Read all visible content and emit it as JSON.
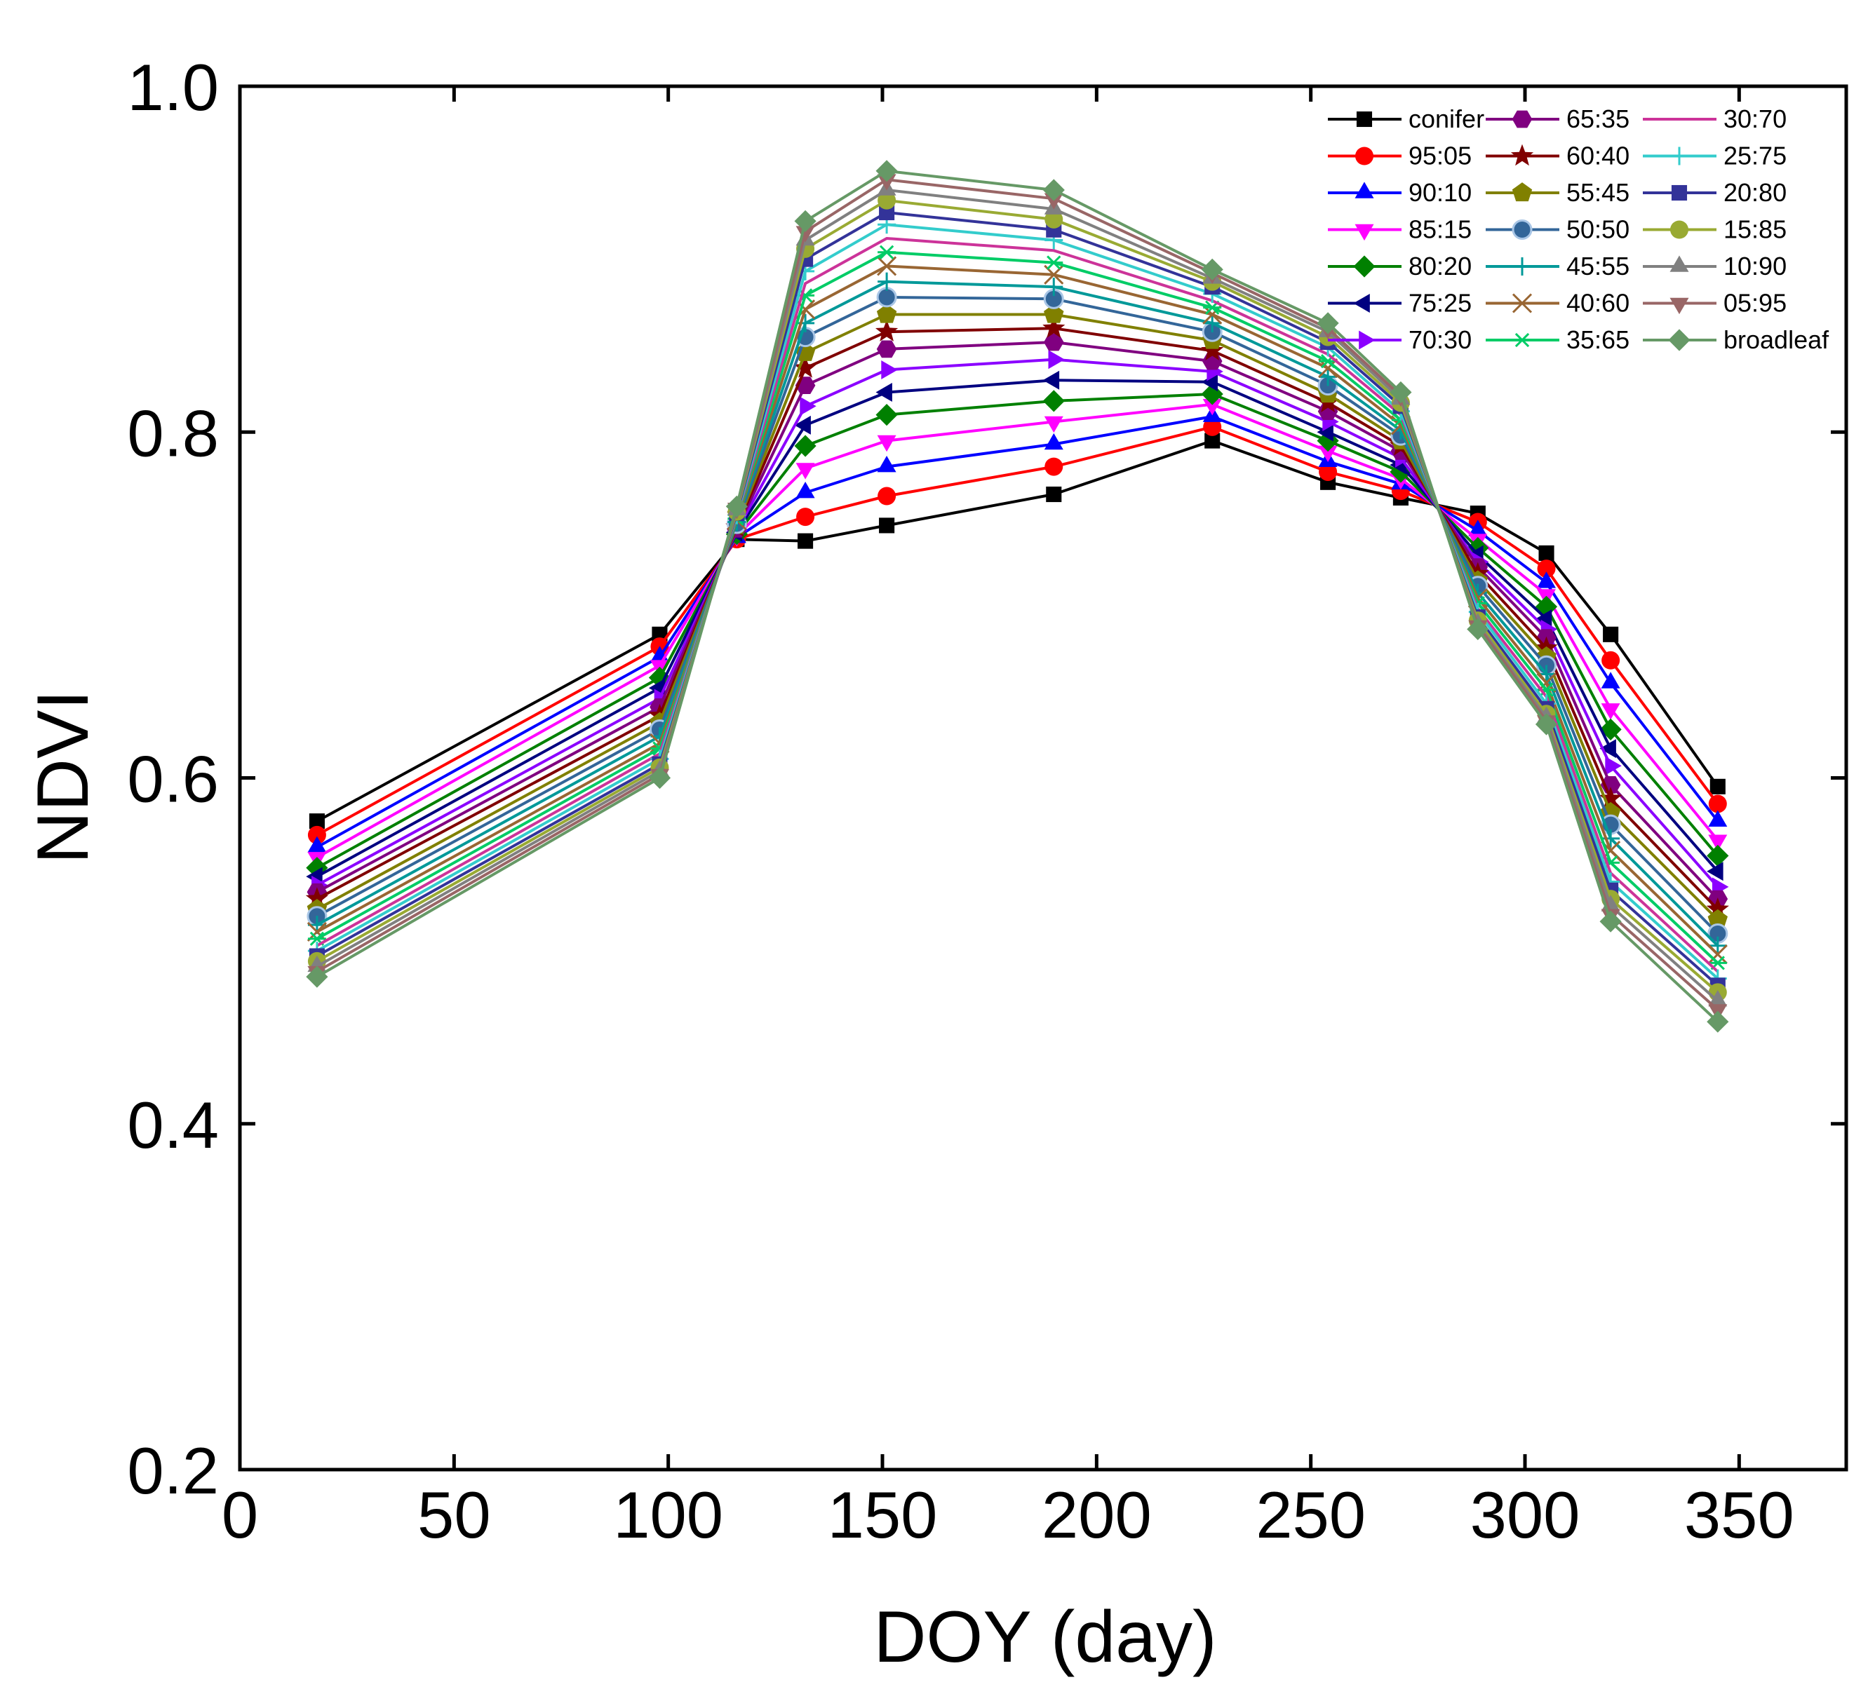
{
  "chart_data": {
    "type": "line",
    "title": "",
    "xlabel": "DOY (day)",
    "ylabel": "NDVI",
    "xlim": [
      0,
      375
    ],
    "ylim": [
      0.2,
      1.0
    ],
    "x_ticks": [
      "0",
      "50",
      "100",
      "150",
      "200",
      "250",
      "300",
      "350"
    ],
    "y_ticks": [
      "0.2",
      "0.4",
      "0.6",
      "0.8",
      "1.0"
    ],
    "x_tick_values": [
      0,
      50,
      100,
      150,
      200,
      250,
      300,
      350
    ],
    "y_tick_values": [
      0.2,
      0.4,
      0.6,
      0.8,
      1.0
    ],
    "grid": false,
    "legend_position": "top-right",
    "x": [
      18,
      98,
      116,
      132,
      151,
      190,
      227,
      254,
      271,
      289,
      305,
      320,
      345
    ],
    "series": [
      {
        "name": "conifer",
        "color": "#000000",
        "marker": "square",
        "values": [
          0.575,
          0.683,
          0.738,
          0.737,
          0.746,
          0.764,
          0.795,
          0.771,
          0.762,
          0.753,
          0.73,
          0.683,
          0.595
        ]
      },
      {
        "name": "95:05",
        "color": "#ff0000",
        "marker": "circle",
        "values": [
          0.567,
          0.676,
          0.738,
          0.751,
          0.763,
          0.78,
          0.803,
          0.777,
          0.766,
          0.748,
          0.721,
          0.668,
          0.585
        ]
      },
      {
        "name": "90:10",
        "color": "#0000ff",
        "marker": "triangle-up",
        "values": [
          0.56,
          0.67,
          0.739,
          0.765,
          0.78,
          0.793,
          0.809,
          0.783,
          0.77,
          0.743,
          0.713,
          0.655,
          0.575
        ]
      },
      {
        "name": "85:15",
        "color": "#ff00ff",
        "marker": "triangle-down",
        "values": [
          0.554,
          0.665,
          0.74,
          0.779,
          0.795,
          0.806,
          0.816,
          0.789,
          0.773,
          0.738,
          0.706,
          0.64,
          0.564
        ]
      },
      {
        "name": "80:20",
        "color": "#008000",
        "marker": "diamond",
        "values": [
          0.548,
          0.658,
          0.741,
          0.792,
          0.81,
          0.818,
          0.822,
          0.795,
          0.777,
          0.733,
          0.699,
          0.628,
          0.555
        ]
      },
      {
        "name": "75:25",
        "color": "#000080",
        "marker": "triangle-left",
        "values": [
          0.543,
          0.652,
          0.742,
          0.804,
          0.823,
          0.83,
          0.829,
          0.8,
          0.781,
          0.729,
          0.692,
          0.617,
          0.546
        ]
      },
      {
        "name": "70:30",
        "color": "#8b00ff",
        "marker": "triangle-right",
        "values": [
          0.538,
          0.646,
          0.743,
          0.815,
          0.836,
          0.842,
          0.835,
          0.806,
          0.785,
          0.725,
          0.686,
          0.607,
          0.537
        ]
      },
      {
        "name": "65:35",
        "color": "#800080",
        "marker": "hexagon",
        "values": [
          0.534,
          0.641,
          0.744,
          0.827,
          0.848,
          0.852,
          0.841,
          0.812,
          0.789,
          0.722,
          0.681,
          0.596,
          0.53
        ]
      },
      {
        "name": "60:40",
        "color": "#800000",
        "marker": "star",
        "values": [
          0.53,
          0.636,
          0.745,
          0.837,
          0.858,
          0.86,
          0.847,
          0.817,
          0.792,
          0.718,
          0.675,
          0.588,
          0.524
        ]
      },
      {
        "name": "55:45",
        "color": "#808000",
        "marker": "pentagon",
        "values": [
          0.524,
          0.632,
          0.746,
          0.846,
          0.868,
          0.868,
          0.853,
          0.822,
          0.795,
          0.714,
          0.67,
          0.58,
          0.518
        ]
      },
      {
        "name": "50:50",
        "color": "#336699",
        "marker": "sphere",
        "values": [
          0.52,
          0.628,
          0.747,
          0.855,
          0.878,
          0.877,
          0.858,
          0.827,
          0.798,
          0.711,
          0.665,
          0.573,
          0.51
        ]
      },
      {
        "name": "45:55",
        "color": "#009999",
        "marker": "plus",
        "values": [
          0.515,
          0.624,
          0.748,
          0.863,
          0.887,
          0.884,
          0.863,
          0.832,
          0.801,
          0.707,
          0.66,
          0.565,
          0.503
        ]
      },
      {
        "name": "40:60",
        "color": "#996633",
        "marker": "x",
        "values": [
          0.511,
          0.62,
          0.749,
          0.871,
          0.896,
          0.891,
          0.868,
          0.837,
          0.804,
          0.704,
          0.655,
          0.558,
          0.498
        ]
      },
      {
        "name": "35:65",
        "color": "#00cc66",
        "marker": "asterisk",
        "values": [
          0.507,
          0.617,
          0.75,
          0.879,
          0.904,
          0.898,
          0.872,
          0.841,
          0.807,
          0.701,
          0.651,
          0.551,
          0.493
        ]
      },
      {
        "name": "30:70",
        "color": "#cc3399",
        "marker": "none",
        "values": [
          0.503,
          0.614,
          0.751,
          0.886,
          0.912,
          0.905,
          0.876,
          0.845,
          0.81,
          0.698,
          0.647,
          0.545,
          0.488
        ]
      },
      {
        "name": "25:75",
        "color": "#33cccc",
        "marker": "plus",
        "values": [
          0.5,
          0.611,
          0.752,
          0.893,
          0.92,
          0.911,
          0.88,
          0.849,
          0.812,
          0.696,
          0.643,
          0.54,
          0.484
        ]
      },
      {
        "name": "20:80",
        "color": "#333399",
        "marker": "square",
        "values": [
          0.497,
          0.608,
          0.753,
          0.9,
          0.927,
          0.917,
          0.884,
          0.852,
          0.815,
          0.693,
          0.64,
          0.535,
          0.48
        ]
      },
      {
        "name": "15:85",
        "color": "#99aa33",
        "marker": "circle",
        "values": [
          0.494,
          0.606,
          0.754,
          0.906,
          0.934,
          0.923,
          0.887,
          0.855,
          0.817,
          0.691,
          0.637,
          0.53,
          0.476
        ]
      },
      {
        "name": "10:90",
        "color": "#808080",
        "marker": "triangle-up",
        "values": [
          0.491,
          0.604,
          0.755,
          0.911,
          0.94,
          0.929,
          0.889,
          0.858,
          0.819,
          0.689,
          0.635,
          0.526,
          0.471
        ]
      },
      {
        "name": "05:95",
        "color": "#996666",
        "marker": "triangle-down",
        "values": [
          0.488,
          0.602,
          0.756,
          0.916,
          0.946,
          0.935,
          0.892,
          0.86,
          0.821,
          0.688,
          0.633,
          0.521,
          0.466
        ]
      },
      {
        "name": "broadleaf",
        "color": "#669966",
        "marker": "diamond",
        "values": [
          0.485,
          0.6,
          0.757,
          0.922,
          0.951,
          0.94,
          0.894,
          0.863,
          0.823,
          0.686,
          0.631,
          0.517,
          0.459
        ]
      }
    ]
  }
}
